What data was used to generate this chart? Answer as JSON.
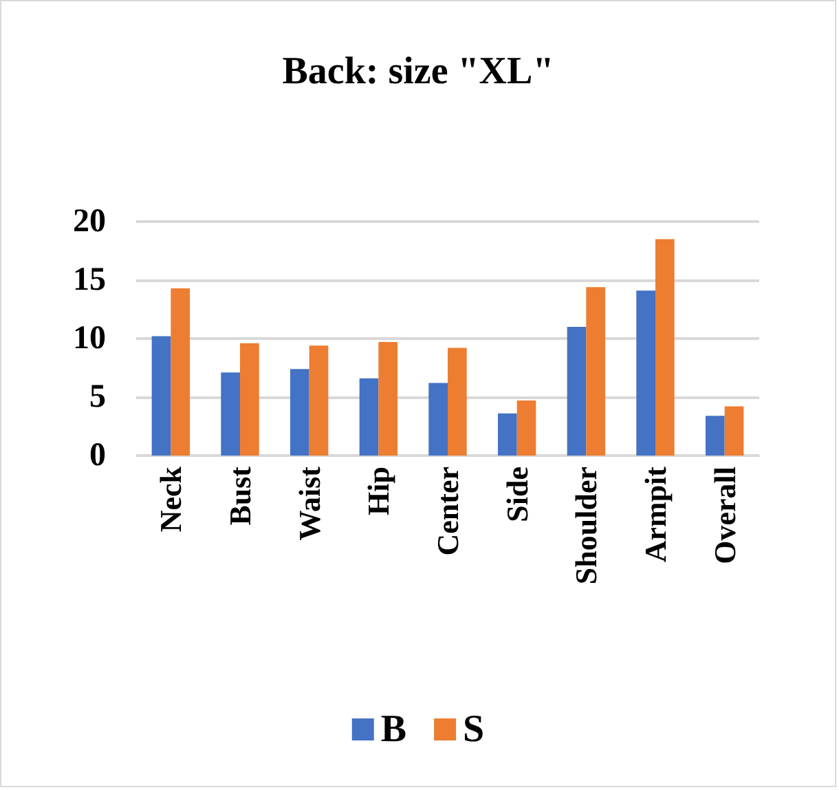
{
  "chart_data": {
    "type": "bar",
    "title": "Back: size \"XL\"",
    "categories": [
      "Neck",
      "Bust",
      "Waist",
      "Hip",
      "Center",
      "Side",
      "Shoulder",
      "Armpit",
      "Overall"
    ],
    "series": [
      {
        "name": "B",
        "color": "#4472c4",
        "values": [
          10.2,
          7.1,
          7.4,
          6.6,
          6.2,
          3.6,
          11.0,
          14.1,
          3.4
        ]
      },
      {
        "name": "S",
        "color": "#ed7d31",
        "values": [
          14.3,
          9.6,
          9.4,
          9.7,
          9.2,
          4.7,
          14.4,
          18.5,
          4.2
        ]
      }
    ],
    "ylim": [
      0,
      20
    ],
    "yticks": [
      0,
      5,
      10,
      15,
      20
    ],
    "grid": "y",
    "legend": "bottom"
  }
}
